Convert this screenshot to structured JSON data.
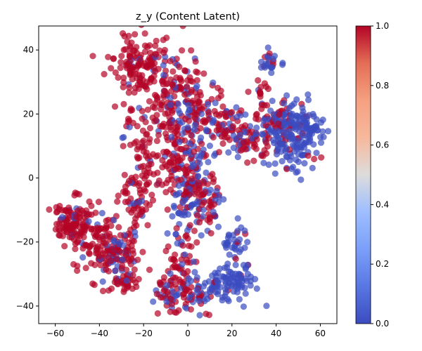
{
  "chart_data": {
    "type": "scatter",
    "title": "z_y (Content Latent)",
    "xlabel": "",
    "ylabel": "",
    "xlim": [
      -67.5,
      67.5
    ],
    "ylim": [
      -45.5,
      47.5
    ],
    "x_ticks": [
      -60,
      -40,
      -20,
      0,
      20,
      40,
      60
    ],
    "y_ticks": [
      -40,
      -20,
      0,
      20,
      40
    ],
    "grid": false,
    "legend": "none",
    "colorbar": {
      "cmap": "coolwarm",
      "range": [
        0.0,
        1.0
      ],
      "ticks": [
        0.0,
        0.2,
        0.4,
        0.6,
        0.8,
        1.0
      ],
      "tick_labels": [
        "0.0",
        "0.2",
        "0.4",
        "0.6",
        "0.8",
        "1.0"
      ],
      "low_color": "#3b4cc0",
      "high_color": "#b40426"
    },
    "point_alpha": 0.7,
    "clusters": [
      {
        "cx": -22,
        "cy": 36,
        "sx": 6,
        "sy": 5,
        "n": 140,
        "red": 0.93
      },
      {
        "cx": -4,
        "cy": 30,
        "sx": 5,
        "sy": 6,
        "n": 70,
        "red": 0.8
      },
      {
        "cx": -12,
        "cy": 16,
        "sx": 9,
        "sy": 6,
        "n": 110,
        "red": 0.85
      },
      {
        "cx": 3,
        "cy": 18,
        "sx": 6,
        "sy": 8,
        "n": 80,
        "red": 0.55
      },
      {
        "cx": 6,
        "cy": 24,
        "sx": 3,
        "sy": 4,
        "n": 20,
        "red": 0.9
      },
      {
        "cx": -12,
        "cy": 3,
        "sx": 7,
        "sy": 4,
        "n": 60,
        "red": 0.9
      },
      {
        "cx": 1,
        "cy": 0,
        "sx": 4,
        "sy": 6,
        "n": 100,
        "red": 0.6
      },
      {
        "cx": 10,
        "cy": -7,
        "sx": 3,
        "sy": 5,
        "n": 45,
        "red": 0.7
      },
      {
        "cx": 0,
        "cy": -13,
        "sx": 4,
        "sy": 5,
        "n": 50,
        "red": 0.45
      },
      {
        "cx": -24,
        "cy": -8,
        "sx": 4,
        "sy": 5,
        "n": 60,
        "red": 0.92
      },
      {
        "cx": -52,
        "cy": -14,
        "sx": 4,
        "sy": 3.5,
        "n": 120,
        "red": 0.95
      },
      {
        "cx": -38,
        "cy": -21,
        "sx": 6,
        "sy": 5,
        "n": 120,
        "red": 0.85
      },
      {
        "cx": -29,
        "cy": -25,
        "sx": 4,
        "sy": 5,
        "n": 70,
        "red": 0.7
      },
      {
        "cx": -28,
        "cy": -32,
        "sx": 3,
        "sy": 2,
        "n": 20,
        "red": 0.95
      },
      {
        "cx": -4,
        "cy": -27,
        "sx": 4,
        "sy": 3,
        "n": 40,
        "red": 0.9
      },
      {
        "cx": -8,
        "cy": -36,
        "sx": 4,
        "sy": 3,
        "n": 50,
        "red": 0.75
      },
      {
        "cx": 5,
        "cy": -36,
        "sx": 5,
        "sy": 3,
        "n": 55,
        "red": 0.5
      },
      {
        "cx": 20,
        "cy": -33,
        "sx": 6,
        "sy": 3,
        "n": 90,
        "red": 0.05
      },
      {
        "cx": 22,
        "cy": -20,
        "sx": 3,
        "sy": 3,
        "n": 35,
        "red": 0.1
      },
      {
        "cx": 18,
        "cy": 17,
        "sx": 5,
        "sy": 4,
        "n": 60,
        "red": 0.75
      },
      {
        "cx": 28,
        "cy": 11,
        "sx": 5,
        "sy": 4,
        "n": 60,
        "red": 0.7
      },
      {
        "cx": 40,
        "cy": 18,
        "sx": 5,
        "sy": 3,
        "n": 70,
        "red": 0.5
      },
      {
        "cx": 48,
        "cy": 13,
        "sx": 6,
        "sy": 5,
        "n": 140,
        "red": 0.1
      },
      {
        "cx": 55,
        "cy": 16,
        "sx": 3,
        "sy": 3,
        "n": 50,
        "red": 0.05
      },
      {
        "cx": 37,
        "cy": 37,
        "sx": 2.5,
        "sy": 2.5,
        "n": 25,
        "red": 0.1
      },
      {
        "cx": 32,
        "cy": 27,
        "sx": 2,
        "sy": 2,
        "n": 12,
        "red": 0.9
      }
    ]
  }
}
